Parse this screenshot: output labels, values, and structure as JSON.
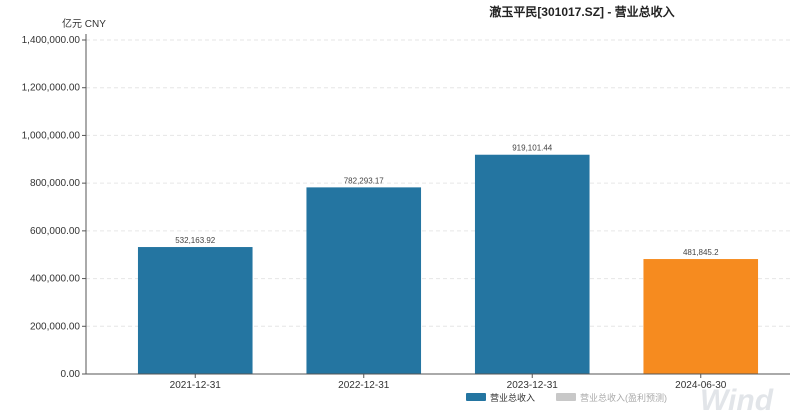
{
  "chart_data": {
    "type": "bar",
    "title": "澈玉平民[301017.SZ] - 营业总收入",
    "unit_label": "亿元  CNY",
    "categories": [
      "2021-12-31",
      "2022-12-31",
      "2023-12-31",
      "2024-06-30"
    ],
    "values": [
      532163.92,
      782293.17,
      919101.44,
      481845.2
    ],
    "value_labels": [
      "532,163.92",
      "782,293.17",
      "919,101.44",
      "481,845.2"
    ],
    "bar_colors": [
      "#2475a1",
      "#2475a1",
      "#2475a1",
      "#f68b1f"
    ],
    "ylim": [
      0,
      1400000
    ],
    "yticks": [
      0,
      200000,
      400000,
      600000,
      800000,
      1000000,
      1200000,
      1400000
    ],
    "ytick_labels": [
      "0.00",
      "200,000.00",
      "400,000.00",
      "600,000.00",
      "800,000.00",
      "1,000,000.00",
      "1,200,000.00",
      "1,400,000.00"
    ],
    "grid": true,
    "legend_position": "bottom-right",
    "legend": [
      {
        "name": "营业总收入",
        "color": "#2475a1"
      },
      {
        "name": "营业总收入(盈利预测)",
        "color": "#c8c8c8"
      }
    ],
    "watermark": "Wind"
  }
}
